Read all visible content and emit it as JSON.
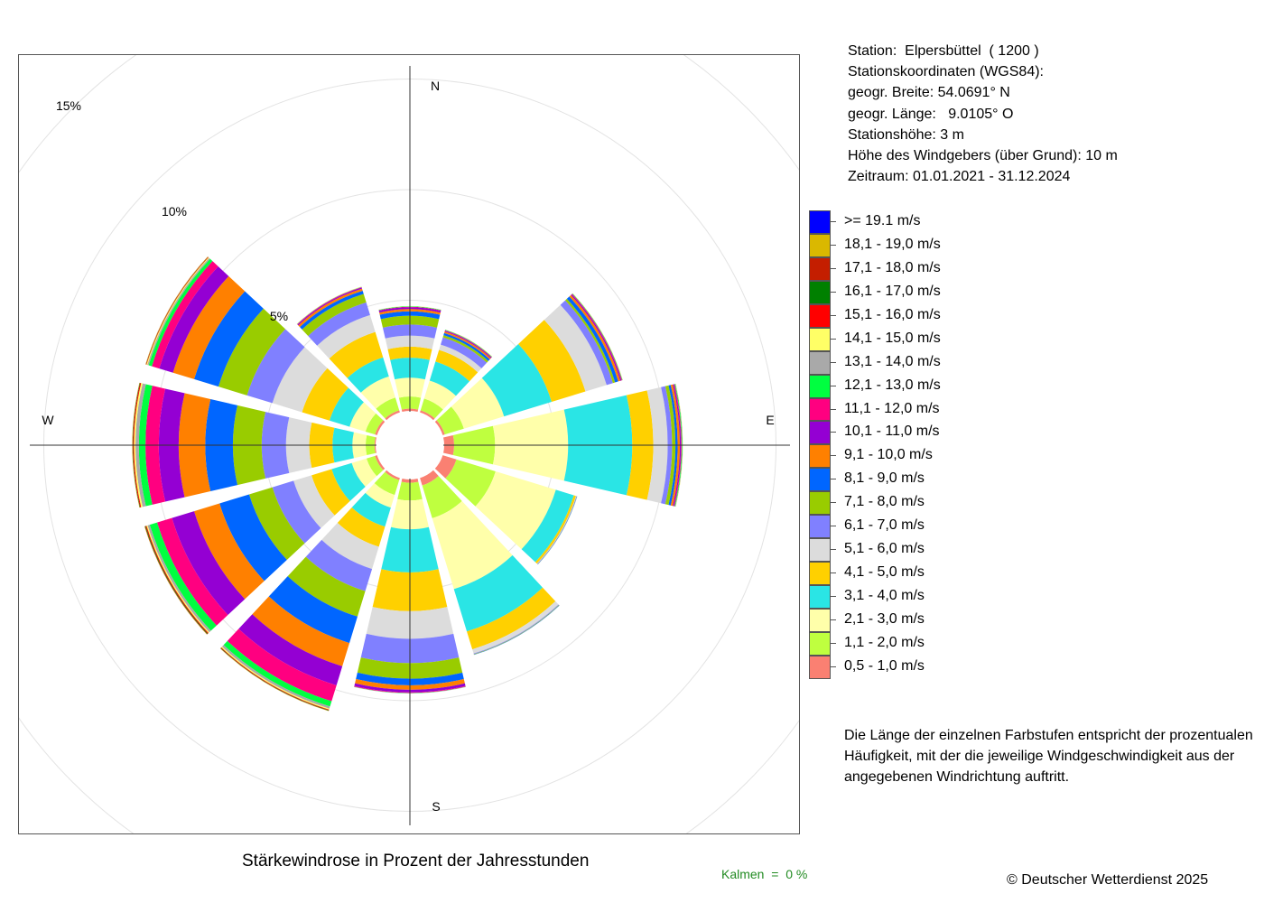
{
  "station_info": {
    "station": "Station:  Elpersbüttel  ( 1200 )",
    "coords_heading": "Stationskoordinaten (WGS84):",
    "latitude": "geogr. Breite: 54.0691° N",
    "longitude": "geogr. Länge:   9.0105° O",
    "elevation": "Stationshöhe: 3 m",
    "sensor_height": "Höhe des Windgebers (über Grund): 10 m",
    "period": "Zeitraum: 01.01.2021 - 31.12.2024"
  },
  "note": {
    "line1": "Die Länge der einzelnen Farbstufen entspricht der prozentualen",
    "line2": "Häufigkeit, mit der die jeweilige Windgeschwindigkeit aus der",
    "line3": "angegebenen Windrichtung auftritt."
  },
  "kalmen": "Kalmen  =  0 %",
  "copyright": "© Deutscher Wetterdienst  2025",
  "chart_data": {
    "type": "wind-rose",
    "title": "Stärkewindrose in Prozent der Jahresstunden",
    "compass_labels": [
      "N",
      "E",
      "S",
      "W"
    ],
    "ring_labels": [
      "5%",
      "10%",
      "15%"
    ],
    "ring_values": [
      5,
      10,
      15
    ],
    "grid": true,
    "legend_position": "right",
    "calm_percent": 0,
    "directions_deg": [
      0,
      30,
      60,
      90,
      120,
      150,
      180,
      210,
      240,
      270,
      300,
      330
    ],
    "speed_classes": [
      {
        "label": "0,5 - 1,0 m/s",
        "color": "#FA8072"
      },
      {
        "label": "1,1 - 2,0 m/s",
        "color": "#BFFF3F"
      },
      {
        "label": "2,1 - 3,0 m/s",
        "color": "#FFFFAA"
      },
      {
        "label": "3,1 - 4,0 m/s",
        "color": "#2AE5E5"
      },
      {
        "label": "4,1 - 5,0 m/s",
        "color": "#FFD000"
      },
      {
        "label": "5,1 - 6,0 m/s",
        "color": "#DCDCDC"
      },
      {
        "label": "6,1 - 7,0 m/s",
        "color": "#8080FF"
      },
      {
        "label": "7,1 - 8,0 m/s",
        "color": "#99CC00"
      },
      {
        "label": "8,1 - 9,0 m/s",
        "color": "#0066FF"
      },
      {
        "label": "9,1 - 10,0 m/s",
        "color": "#FF8000"
      },
      {
        "label": "10,1 - 11,0 m/s",
        "color": "#9400D3"
      },
      {
        "label": "11,1 - 12,0 m/s",
        "color": "#FF0080"
      },
      {
        "label": "12,1 - 13,0 m/s",
        "color": "#00FF40"
      },
      {
        "label": "13,1 - 14,0 m/s",
        "color": "#A9A9A9"
      },
      {
        "label": "14,1 - 15,0 m/s",
        "color": "#FFFF66"
      },
      {
        "label": "15,1 - 16,0 m/s",
        "color": "#FF0000"
      },
      {
        "label": "16,1 - 17,0 m/s",
        "color": "#008000"
      },
      {
        "label": "17,1 - 18,0 m/s",
        "color": "#C41E00"
      },
      {
        "label": "18,1 - 19,0 m/s",
        "color": "#DAB800"
      },
      {
        "label": ">= 19.1 m/s",
        "color": "#0000FF"
      }
    ],
    "cumulative_percent": [
      [
        0.1,
        0.65,
        1.5,
        2.4,
        2.9,
        3.4,
        3.9,
        4.3,
        4.5,
        4.6,
        4.68,
        4.7,
        4.72,
        4.73,
        4.74,
        4.74,
        4.74,
        4.74,
        4.74,
        4.74
      ],
      [
        0.1,
        0.65,
        1.5,
        2.4,
        2.95,
        3.2,
        3.55,
        3.65,
        3.75,
        3.82,
        3.86,
        3.88,
        3.9,
        3.91,
        3.92,
        3.92,
        3.92,
        3.92,
        3.92,
        3.92
      ],
      [
        0.1,
        1.0,
        2.9,
        5.15,
        6.75,
        7.75,
        8.05,
        8.15,
        8.3,
        8.4,
        8.45,
        8.48,
        8.5,
        8.51,
        8.52,
        8.52,
        8.52,
        8.52,
        8.52,
        8.52
      ],
      [
        0.45,
        2.3,
        5.6,
        8.5,
        9.45,
        10.1,
        10.3,
        10.45,
        10.55,
        10.65,
        10.7,
        10.73,
        10.76,
        10.78,
        10.79,
        10.79,
        10.79,
        10.79,
        10.79,
        10.79
      ],
      [
        0.65,
        2.5,
        5.35,
        6.2,
        6.3,
        6.32,
        6.34,
        6.35,
        6.36,
        6.36,
        6.36,
        6.36,
        6.36,
        6.36,
        6.36,
        6.36,
        6.36,
        6.36,
        6.36,
        6.36
      ],
      [
        0.35,
        1.9,
        5.25,
        7.25,
        8.1,
        8.3,
        8.33,
        8.35,
        8.36,
        8.36,
        8.36,
        8.36,
        8.36,
        8.36,
        8.36,
        8.36,
        8.36,
        8.36,
        8.36,
        8.36
      ],
      [
        0.15,
        0.95,
        2.25,
        4.2,
        5.95,
        7.2,
        8.3,
        9.0,
        9.3,
        9.5,
        9.62,
        9.65,
        9.66,
        9.67,
        9.67,
        9.67,
        9.67,
        9.67,
        9.67,
        9.67
      ],
      [
        0.1,
        0.8,
        1.4,
        2.3,
        3.25,
        4.3,
        5.35,
        6.55,
        7.8,
        8.9,
        9.8,
        10.55,
        10.8,
        10.9,
        10.95,
        10.98,
        11.0,
        11.01,
        11.02,
        11.02
      ],
      [
        0.1,
        0.5,
        1.2,
        2.15,
        3.1,
        3.95,
        4.95,
        6.05,
        7.45,
        8.65,
        9.7,
        10.4,
        10.75,
        10.85,
        10.9,
        10.94,
        10.97,
        10.99,
        11.0,
        11.0
      ],
      [
        0.05,
        0.45,
        1.05,
        1.95,
        3.0,
        4.05,
        5.15,
        6.45,
        7.7,
        8.9,
        9.8,
        10.4,
        10.7,
        10.85,
        10.92,
        10.96,
        10.98,
        10.99,
        11.0,
        11.0
      ],
      [
        0.1,
        0.55,
        1.3,
        2.25,
        3.55,
        4.95,
        6.15,
        7.5,
        8.65,
        9.65,
        10.3,
        10.65,
        10.8,
        10.86,
        10.9,
        10.92,
        10.93,
        10.94,
        10.95,
        10.95
      ],
      [
        0.1,
        0.7,
        1.7,
        2.6,
        3.8,
        4.6,
        5.2,
        5.6,
        5.75,
        5.85,
        5.9,
        5.92,
        5.93,
        5.94,
        5.95,
        5.95,
        5.95,
        5.95,
        5.95,
        5.95
      ]
    ]
  }
}
